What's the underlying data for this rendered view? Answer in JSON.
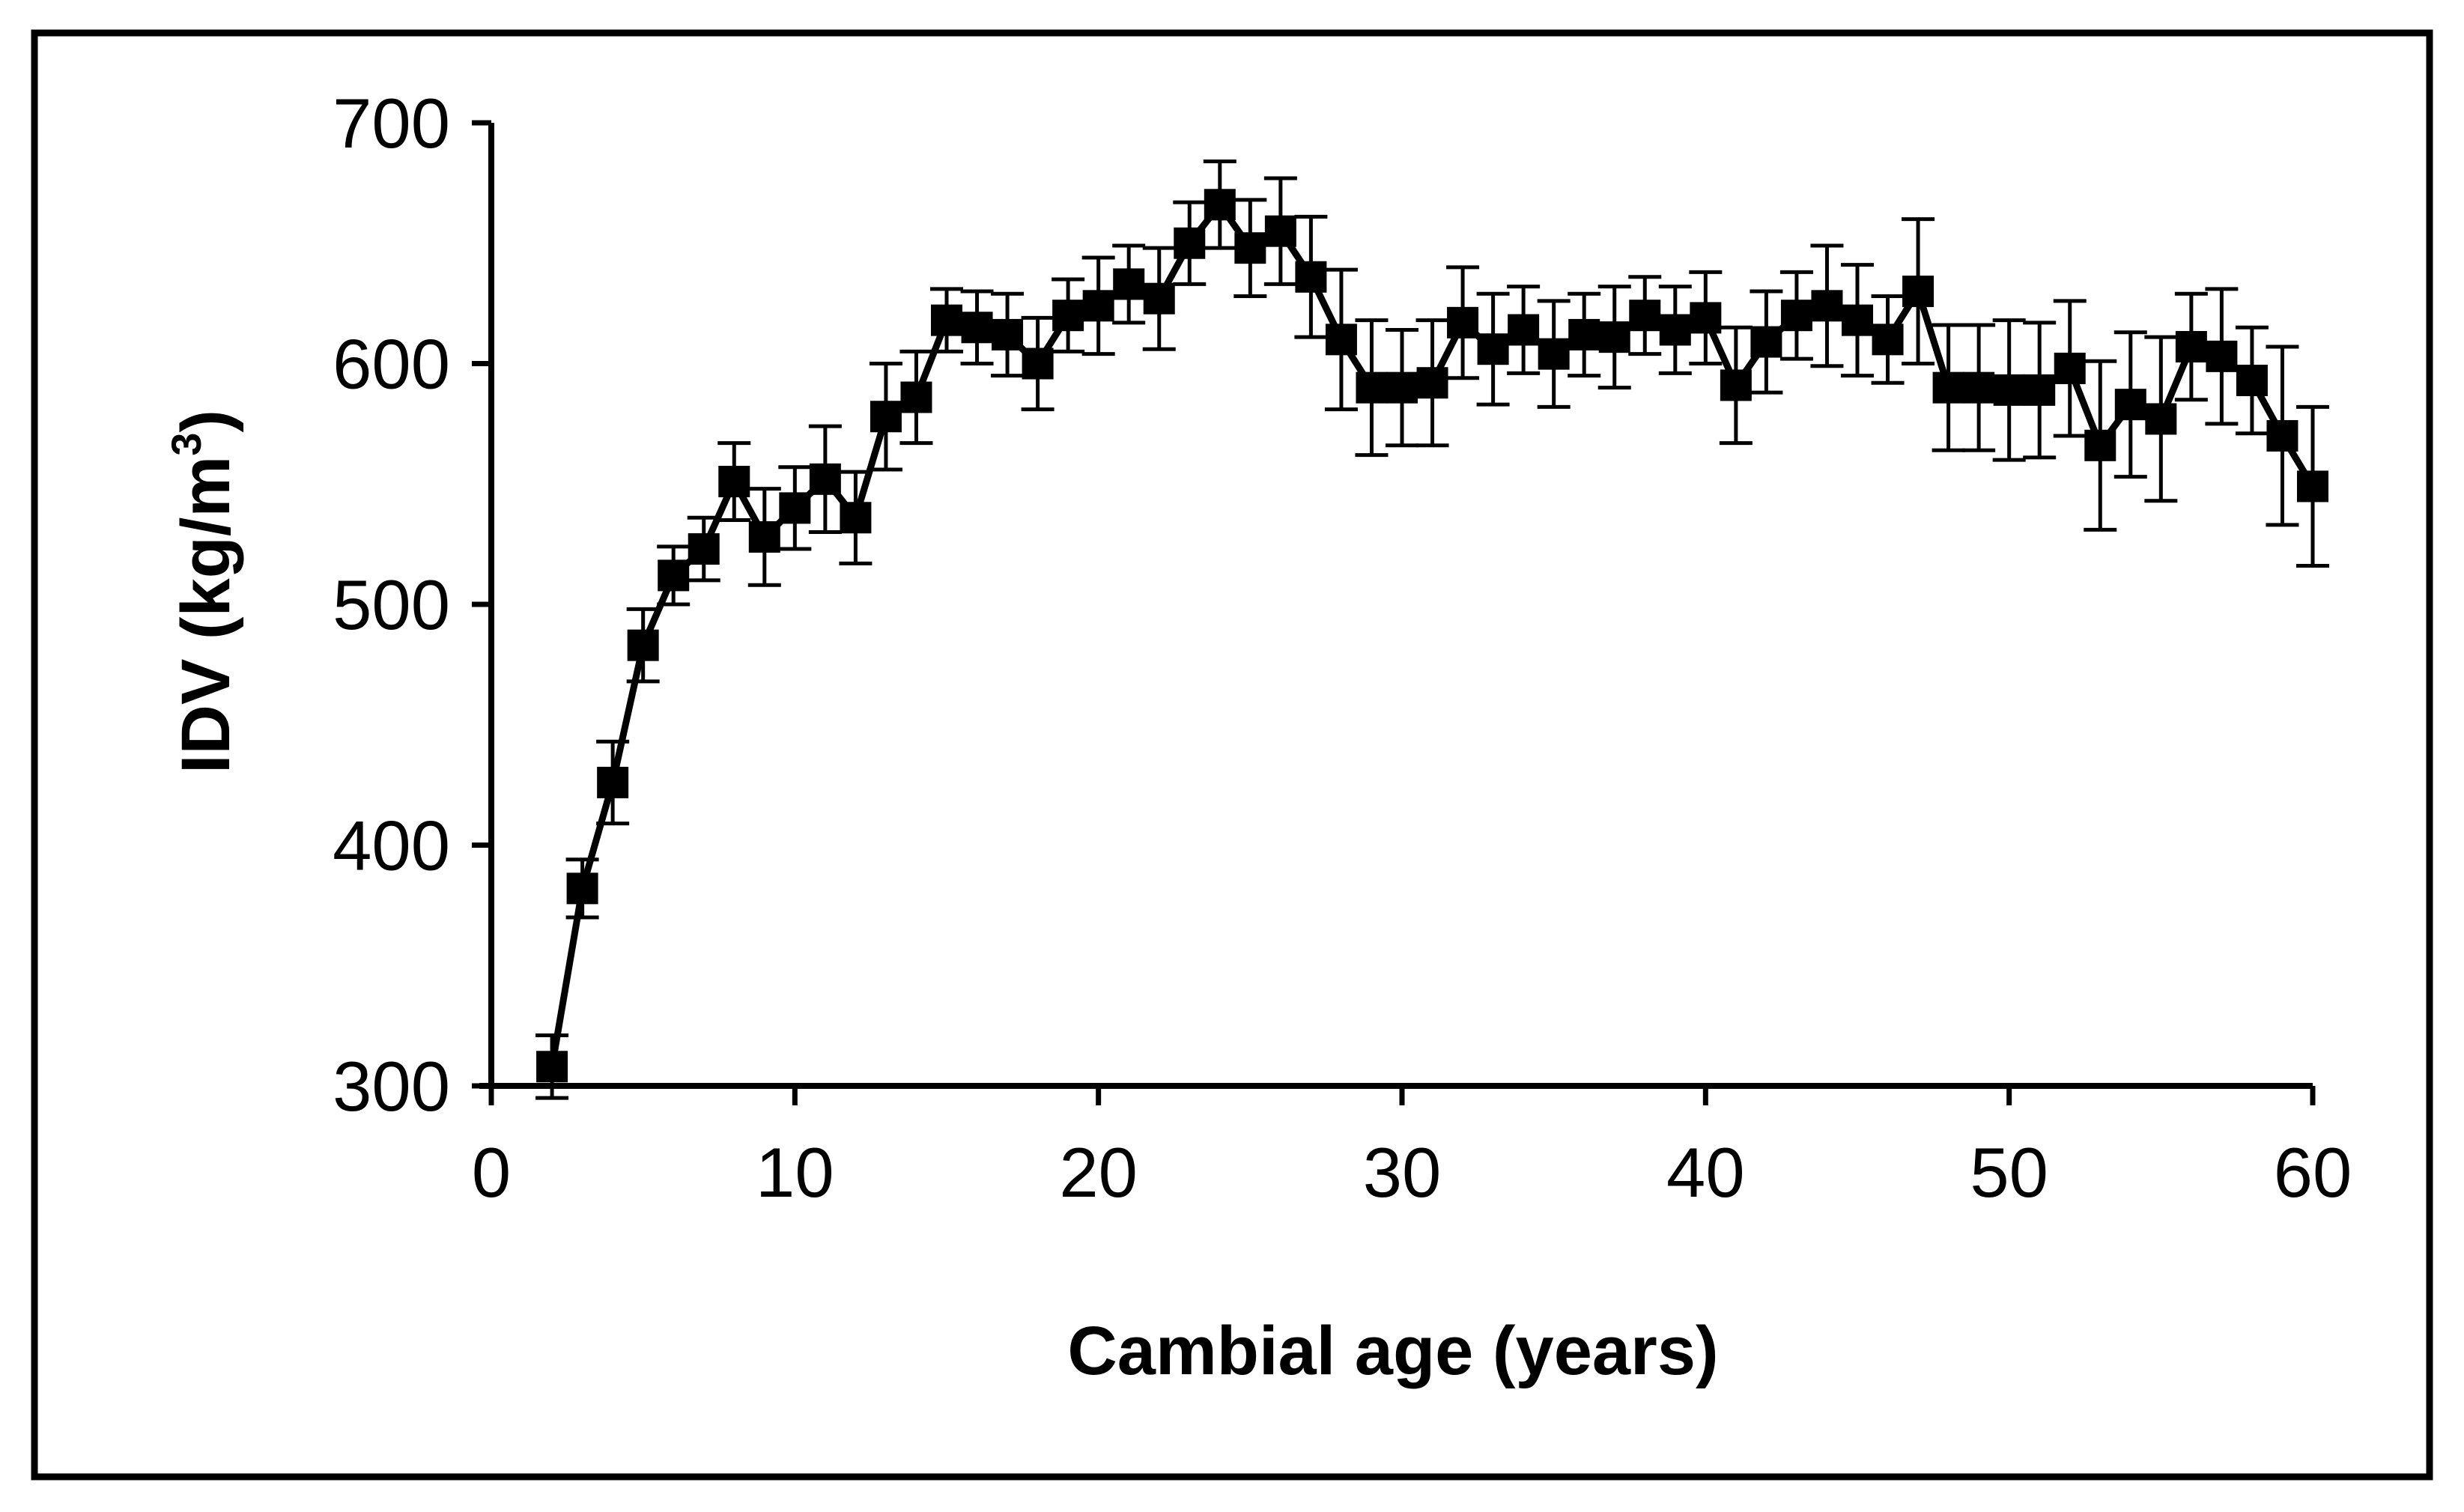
{
  "chart_data": {
    "type": "line",
    "title": "",
    "xlabel": "Cambial age (years)",
    "ylabel": "IDV (kg/m³)",
    "ylabel_main": "IDV (kg/m",
    "ylabel_sup": "3",
    "ylabel_tail": ")",
    "xlim": [
      0,
      60
    ],
    "ylim": [
      300,
      700
    ],
    "x_ticks": [
      0,
      10,
      20,
      30,
      40,
      50,
      60
    ],
    "y_ticks": [
      300,
      400,
      500,
      600,
      700
    ],
    "x_tick_labels": [
      "0",
      "10",
      "20",
      "30",
      "40",
      "50",
      "60"
    ],
    "y_tick_labels": [
      "300",
      "400",
      "500",
      "600",
      "700"
    ],
    "grid": false,
    "legend": "none",
    "marker": "square",
    "colors": {
      "line": "#000000",
      "marker": "#000000",
      "frame": "#000000",
      "background": "#ffffff"
    },
    "series": [
      {
        "name": "IDV",
        "x": [
          2,
          3,
          4,
          5,
          6,
          7,
          8,
          9,
          10,
          11,
          12,
          13,
          14,
          15,
          16,
          17,
          18,
          19,
          20,
          21,
          22,
          23,
          24,
          25,
          26,
          27,
          28,
          29,
          30,
          31,
          32,
          33,
          34,
          35,
          36,
          37,
          38,
          39,
          40,
          41,
          42,
          43,
          44,
          45,
          46,
          47,
          48,
          49,
          50,
          51,
          52,
          53,
          54,
          55,
          56,
          57,
          58,
          59,
          60
        ],
        "y": [
          308,
          382,
          426,
          483,
          512,
          523,
          551,
          528,
          540,
          552,
          536,
          578,
          586,
          618,
          615,
          612,
          600,
          620,
          624,
          633,
          627,
          650,
          666,
          648,
          655,
          636,
          610,
          590,
          590,
          592,
          617,
          606,
          614,
          604,
          612,
          611,
          620,
          614,
          619,
          591,
          609,
          620,
          624,
          618,
          610,
          630,
          590,
          590,
          589,
          589,
          598,
          566,
          583,
          577,
          607,
          603,
          593,
          570,
          549
        ],
        "err": [
          13,
          12,
          17,
          15,
          12,
          13,
          16,
          20,
          17,
          22,
          19,
          22,
          19,
          13,
          15,
          17,
          19,
          15,
          20,
          16,
          21,
          17,
          18,
          20,
          22,
          25,
          29,
          28,
          24,
          26,
          23,
          23,
          18,
          22,
          17,
          21,
          16,
          18,
          19,
          24,
          21,
          18,
          25,
          23,
          18,
          30,
          26,
          26,
          29,
          28,
          28,
          35,
          30,
          34,
          22,
          28,
          22,
          37,
          33
        ]
      }
    ]
  }
}
